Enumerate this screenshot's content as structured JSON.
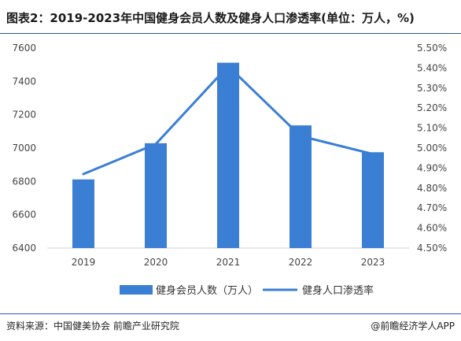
{
  "header": {
    "title": "图表2：2019-2023年中国健身会员人数及健身人口渗透率(单位：万人，%)"
  },
  "footer": {
    "source": "资料来源：中国健美协会 前瞻产业研究院",
    "brand": "@前瞻经济学人APP"
  },
  "colors": {
    "bar": "#3b7fd4",
    "line": "#3b7fd4",
    "rule": "#2b5da8"
  },
  "chart_data": {
    "type": "bar",
    "title": "",
    "categories": [
      "2019",
      "2020",
      "2021",
      "2022",
      "2023"
    ],
    "series": [
      {
        "name": "健身会员人数（万人）",
        "type": "bar",
        "axis": "left",
        "values": [
          6812,
          7029,
          7512,
          7136,
          6975
        ]
      },
      {
        "name": "健身人口渗透率",
        "type": "line",
        "axis": "right",
        "values": [
          4.87,
          5.02,
          5.41,
          5.06,
          4.97
        ]
      }
    ],
    "y_left": {
      "min": 6400,
      "max": 7600,
      "ticks": [
        "6400",
        "6600",
        "6800",
        "7000",
        "7200",
        "7400",
        "7600"
      ]
    },
    "y_right": {
      "min": 4.5,
      "max": 5.5,
      "ticks": [
        "4.50%",
        "4.60%",
        "4.70%",
        "4.80%",
        "4.90%",
        "5.00%",
        "5.10%",
        "5.20%",
        "5.30%",
        "5.40%",
        "5.50%"
      ]
    },
    "grid": false,
    "legend": {
      "position": "bottom"
    }
  }
}
